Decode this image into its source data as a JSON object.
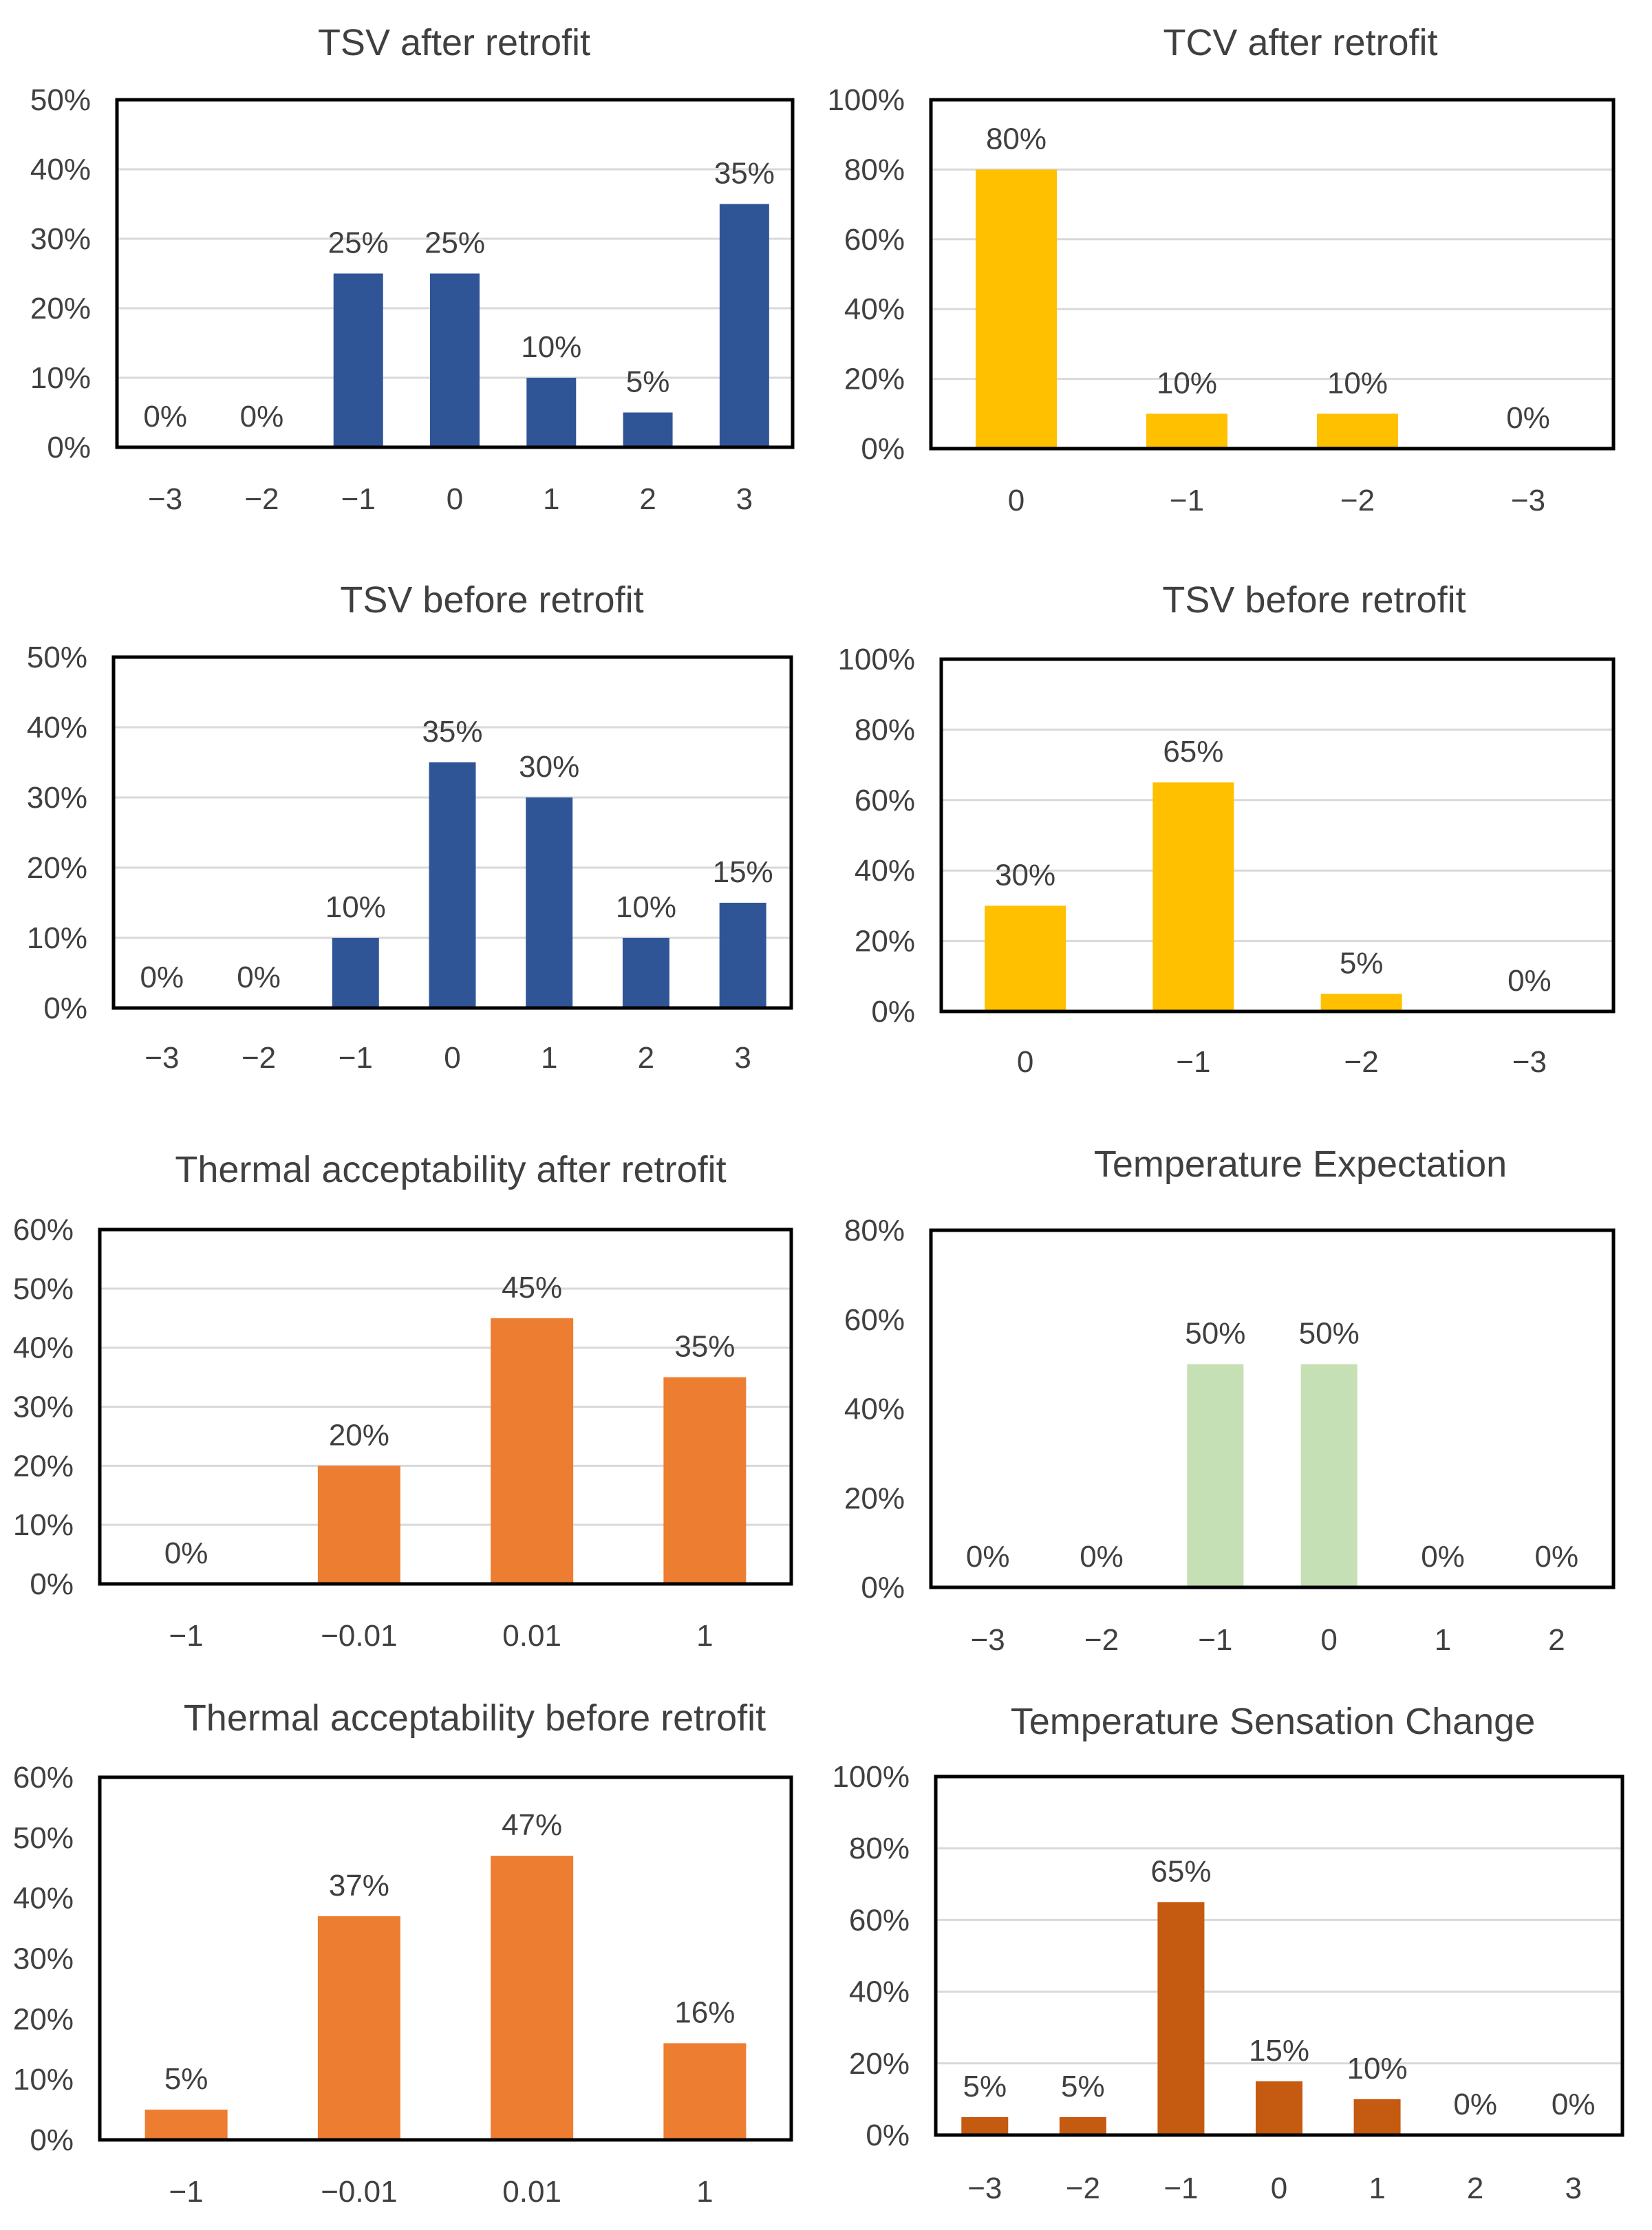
{
  "chart_data": [
    {
      "type": "bar",
      "title": "TSV after retrofit",
      "categories": [
        "−3",
        "−2",
        "−1",
        "0",
        "1",
        "2",
        "3"
      ],
      "values": [
        0,
        0,
        25,
        25,
        10,
        5,
        35
      ],
      "data_labels": [
        "0%",
        "0%",
        "25%",
        "25%",
        "10%",
        "5%",
        "35%"
      ],
      "y_ticks": [
        "0%",
        "10%",
        "20%",
        "30%",
        "40%",
        "50%"
      ],
      "ylim": [
        0,
        50
      ],
      "grid": true,
      "legend": "none",
      "color": "#2f5597"
    },
    {
      "type": "bar",
      "title": "TCV after retrofit",
      "categories": [
        "0",
        "−1",
        "−2",
        "−3"
      ],
      "values": [
        80,
        10,
        10,
        0
      ],
      "data_labels": [
        "80%",
        "10%",
        "10%",
        "0%"
      ],
      "y_ticks": [
        "0%",
        "20%",
        "40%",
        "60%",
        "80%",
        "100%"
      ],
      "ylim": [
        0,
        100
      ],
      "grid": true,
      "legend": "none",
      "color": "#ffc000"
    },
    {
      "type": "bar",
      "title": "TSV before retrofit",
      "categories": [
        "−3",
        "−2",
        "−1",
        "0",
        "1",
        "2",
        "3"
      ],
      "values": [
        0,
        0,
        10,
        35,
        30,
        10,
        15
      ],
      "data_labels": [
        "0%",
        "0%",
        "10%",
        "35%",
        "30%",
        "10%",
        "15%"
      ],
      "y_ticks": [
        "0%",
        "10%",
        "20%",
        "30%",
        "40%",
        "50%"
      ],
      "ylim": [
        0,
        50
      ],
      "grid": true,
      "legend": "none",
      "color": "#2f5597"
    },
    {
      "type": "bar",
      "title": "TSV before retrofit",
      "categories": [
        "0",
        "−1",
        "−2",
        "−3"
      ],
      "values": [
        30,
        65,
        5,
        0
      ],
      "data_labels": [
        "30%",
        "65%",
        "5%",
        "0%"
      ],
      "y_ticks": [
        "0%",
        "20%",
        "40%",
        "60%",
        "80%",
        "100%"
      ],
      "ylim": [
        0,
        100
      ],
      "grid": true,
      "legend": "none",
      "color": "#ffc000"
    },
    {
      "type": "bar",
      "title": "Thermal acceptability after retrofit",
      "categories": [
        "−1",
        "−0.01",
        "0.01",
        "1"
      ],
      "values": [
        0,
        20,
        45,
        35
      ],
      "data_labels": [
        "0%",
        "20%",
        "45%",
        "35%"
      ],
      "y_ticks": [
        "0%",
        "10%",
        "20%",
        "30%",
        "40%",
        "50%",
        "60%"
      ],
      "ylim": [
        0,
        60
      ],
      "grid": true,
      "legend": "none",
      "color": "#ed7d31"
    },
    {
      "type": "bar",
      "title": "Temperature Expectation",
      "categories": [
        "−3",
        "−2",
        "−1",
        "0",
        "1",
        "2"
      ],
      "values": [
        0,
        0,
        50,
        50,
        0,
        0
      ],
      "data_labels": [
        "0%",
        "0%",
        "50%",
        "50%",
        "0%",
        "0%"
      ],
      "y_ticks": [
        "0%",
        "20%",
        "40%",
        "60%",
        "80%"
      ],
      "ylim": [
        0,
        80
      ],
      "grid": false,
      "legend": "none",
      "color": "#c5e0b4"
    },
    {
      "type": "bar",
      "title": "Thermal acceptability before retrofit",
      "categories": [
        "−1",
        "−0.01",
        "0.01",
        "1"
      ],
      "values": [
        5,
        37,
        47,
        16
      ],
      "data_labels": [
        "5%",
        "37%",
        "47%",
        "16%"
      ],
      "y_ticks": [
        "0%",
        "10%",
        "20%",
        "30%",
        "40%",
        "50%",
        "60%"
      ],
      "ylim": [
        0,
        60
      ],
      "grid": false,
      "legend": "none",
      "color": "#ed7d31"
    },
    {
      "type": "bar",
      "title": "Temperature Sensation Change",
      "categories": [
        "−3",
        "−2",
        "−1",
        "0",
        "1",
        "2",
        "3"
      ],
      "values": [
        5,
        5,
        65,
        15,
        10,
        0,
        0
      ],
      "data_labels": [
        "5%",
        "5%",
        "65%",
        "15%",
        "10%",
        "0%",
        "0%"
      ],
      "y_ticks": [
        "0%",
        "20%",
        "40%",
        "60%",
        "80%",
        "100%"
      ],
      "ylim": [
        0,
        100
      ],
      "grid": true,
      "legend": "none",
      "color": "#c55a11"
    }
  ]
}
